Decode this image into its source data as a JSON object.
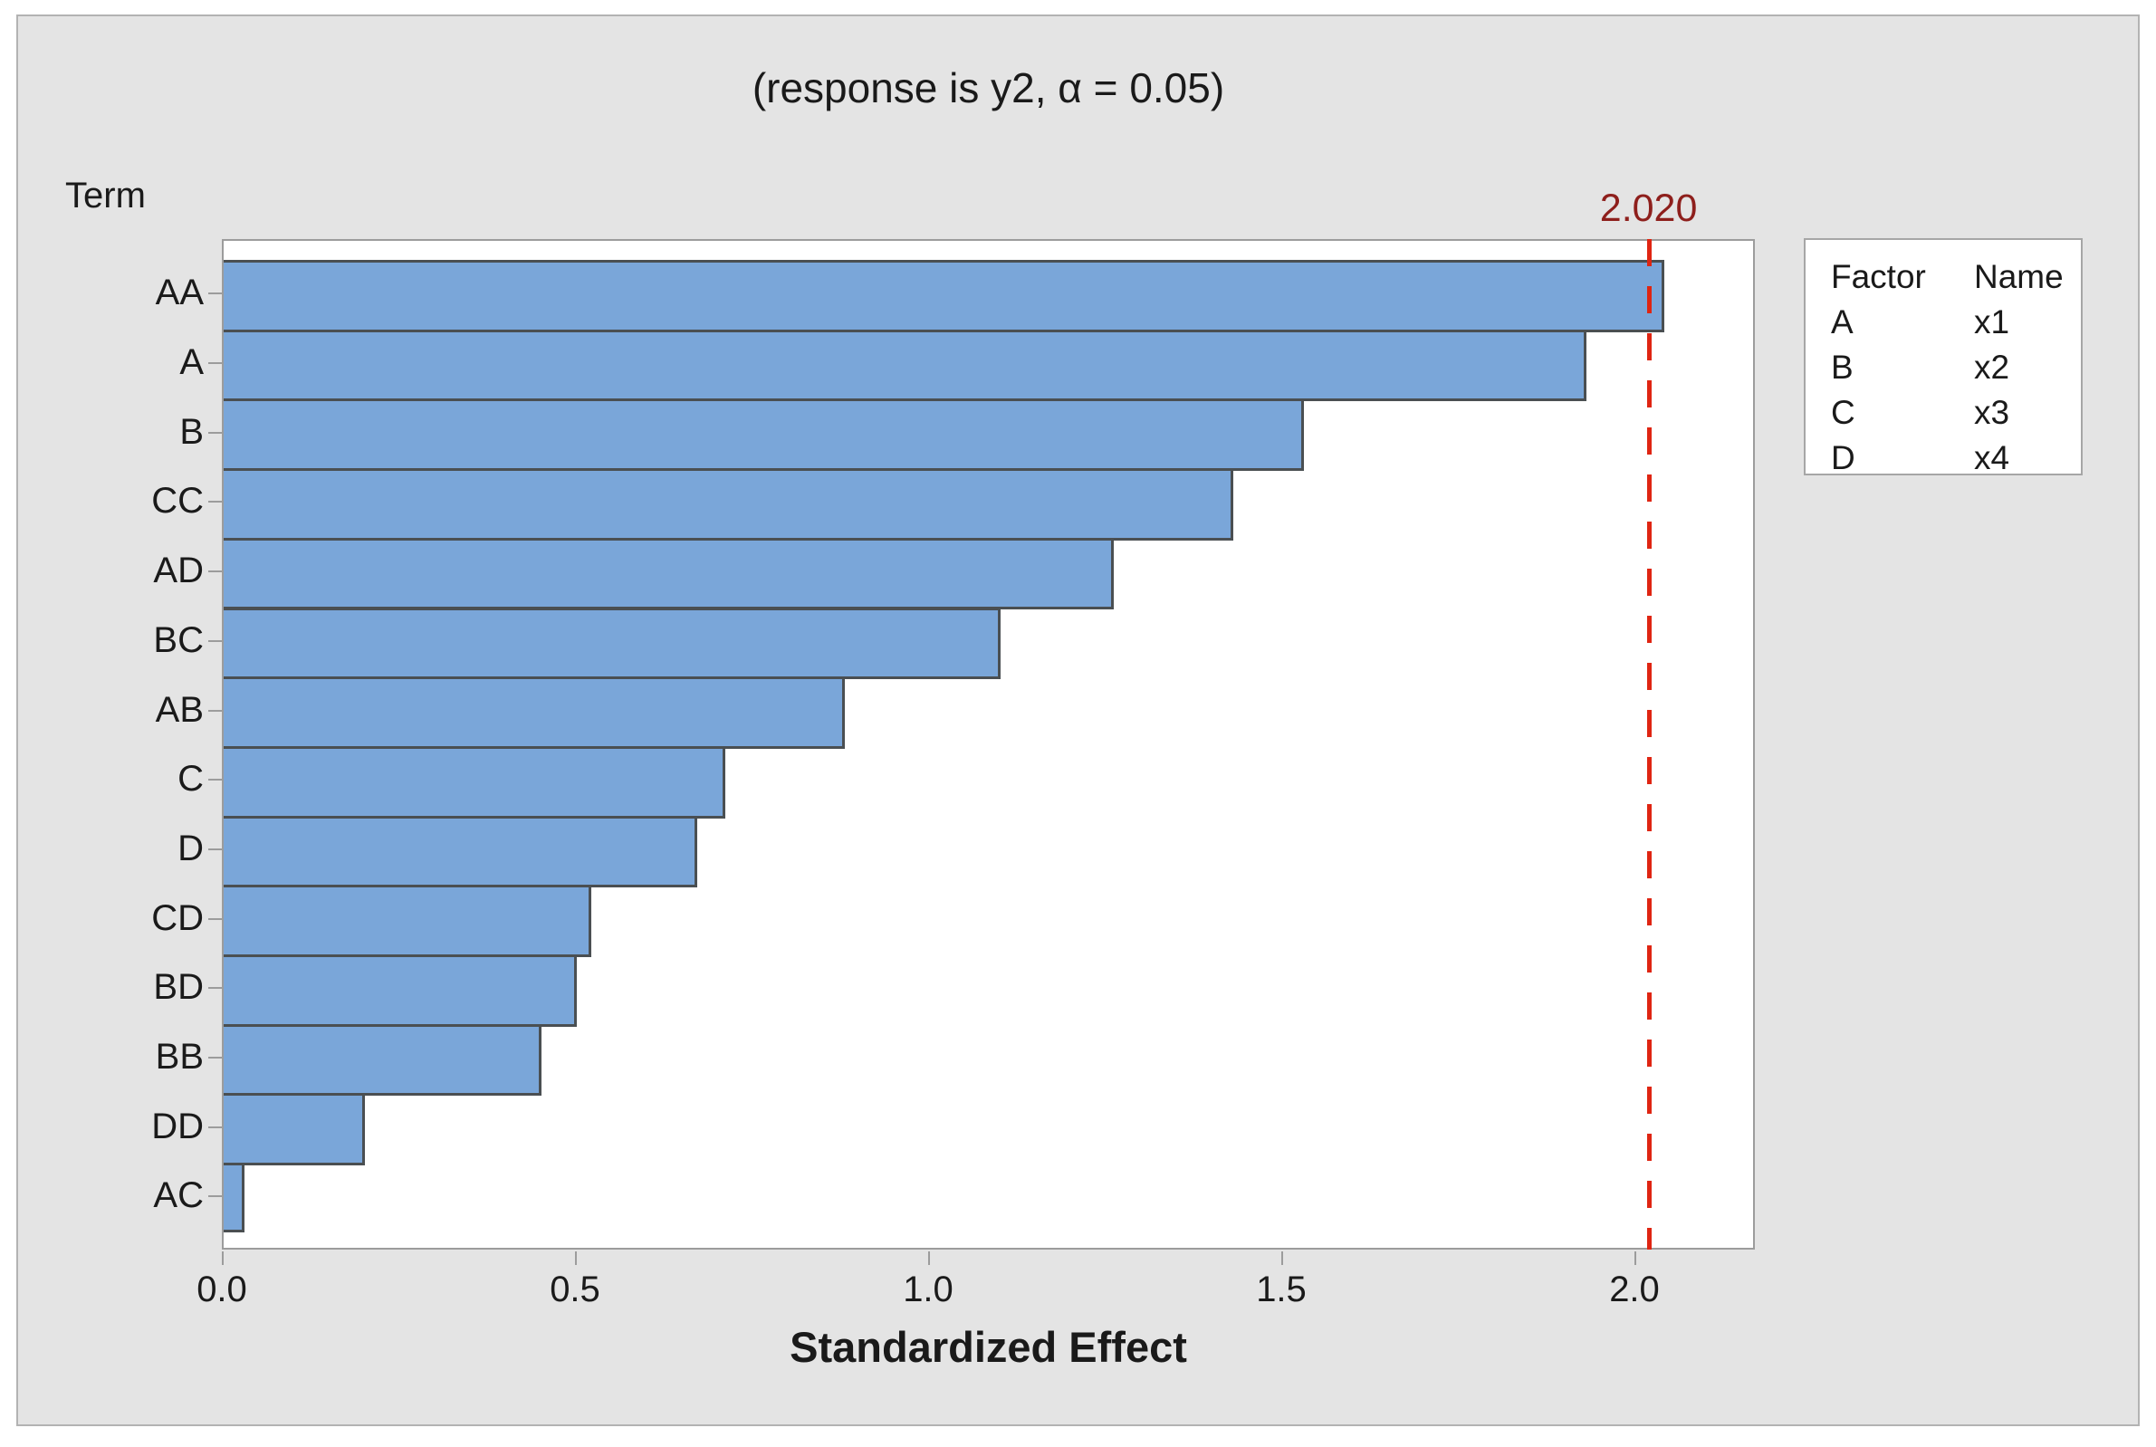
{
  "title": "(response is y2, α = 0.05)",
  "y_axis_title": "Term",
  "x_axis_title": "Standardized Effect",
  "reference_line_label": "2.020",
  "x_ticks": [
    "0.0",
    "0.5",
    "1.0",
    "1.5",
    "2.0"
  ],
  "legend": {
    "headers": [
      "Factor",
      "Name"
    ],
    "rows": [
      [
        "A",
        "x1"
      ],
      [
        "B",
        "x2"
      ],
      [
        "C",
        "x3"
      ],
      [
        "D",
        "x4"
      ]
    ]
  },
  "colors": {
    "bar_fill": "#7aa6d9",
    "bar_border": "#4a4f52",
    "panel_background": "#e4e4e4",
    "plot_background": "#ffffff",
    "reference_line": "#df2512",
    "reference_label": "#8e1f1c"
  },
  "chart_data": {
    "type": "bar",
    "orientation": "horizontal",
    "title": "(response is y2, α = 0.05)",
    "xlabel": "Standardized Effect",
    "ylabel": "Term",
    "categories": [
      "AA",
      "A",
      "B",
      "CC",
      "AD",
      "BC",
      "AB",
      "C",
      "D",
      "CD",
      "BD",
      "BB",
      "DD",
      "AC"
    ],
    "values": [
      2.04,
      1.93,
      1.53,
      1.43,
      1.26,
      1.1,
      0.88,
      0.71,
      0.67,
      0.52,
      0.5,
      0.45,
      0.2,
      0.03
    ],
    "reference_line": 2.02,
    "alpha": 0.05,
    "xlim": [
      0,
      2.17
    ],
    "x_tick_values": [
      0.0,
      0.5,
      1.0,
      1.5,
      2.0
    ],
    "grid": false,
    "legend_position": "right"
  }
}
